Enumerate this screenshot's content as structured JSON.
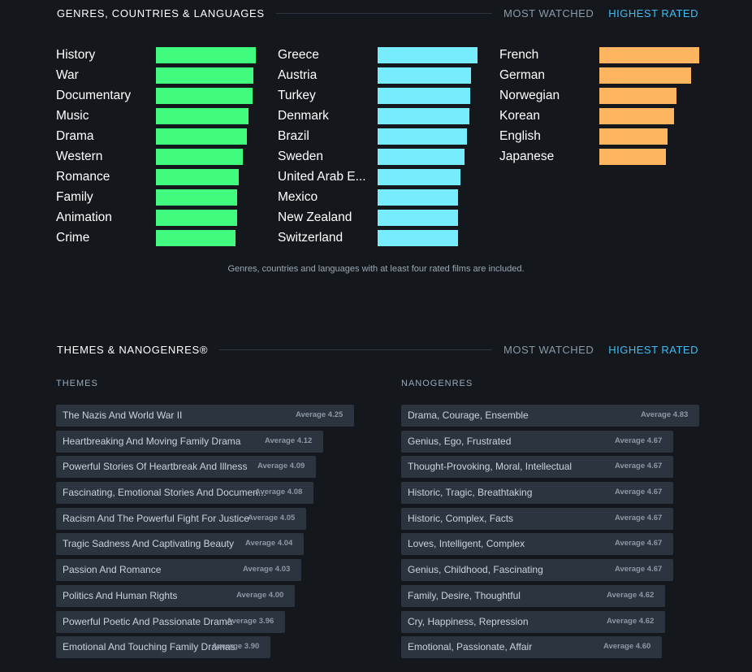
{
  "top_section": {
    "title": "GENRES, COUNTRIES & LANGUAGES",
    "tab_most_watched": "MOST WATCHED",
    "tab_highest_rated": "HIGHEST RATED",
    "note": "Genres, countries and languages with at least four rated films are included."
  },
  "genres": [
    {
      "label": "History",
      "value": 1.0
    },
    {
      "label": "War",
      "value": 0.975
    },
    {
      "label": "Documentary",
      "value": 0.97
    },
    {
      "label": "Music",
      "value": 0.93
    },
    {
      "label": "Drama",
      "value": 0.91
    },
    {
      "label": "Western",
      "value": 0.87
    },
    {
      "label": "Romance",
      "value": 0.83
    },
    {
      "label": "Family",
      "value": 0.815
    },
    {
      "label": "Animation",
      "value": 0.815
    },
    {
      "label": "Crime",
      "value": 0.8
    }
  ],
  "countries": [
    {
      "label": "Greece",
      "value": 1.0
    },
    {
      "label": "Austria",
      "value": 0.935
    },
    {
      "label": "Turkey",
      "value": 0.93
    },
    {
      "label": "Denmark",
      "value": 0.915
    },
    {
      "label": "Brazil",
      "value": 0.895
    },
    {
      "label": "Sweden",
      "value": 0.87
    },
    {
      "label": "United Arab E...",
      "value": 0.83
    },
    {
      "label": "Mexico",
      "value": 0.805
    },
    {
      "label": "New Zealand",
      "value": 0.805
    },
    {
      "label": "Switzerland",
      "value": 0.805
    }
  ],
  "languages": [
    {
      "label": "French",
      "value": 1.0
    },
    {
      "label": "German",
      "value": 0.915
    },
    {
      "label": "Norwegian",
      "value": 0.775
    },
    {
      "label": "Korean",
      "value": 0.75
    },
    {
      "label": "English",
      "value": 0.685
    },
    {
      "label": "Japanese",
      "value": 0.67
    }
  ],
  "themes_section": {
    "title": "THEMES & NANOGENRES®",
    "tab_most_watched": "MOST WATCHED",
    "tab_highest_rated": "HIGHEST RATED",
    "themes_heading": "THEMES",
    "nanogenres_heading": "NANOGENRES"
  },
  "themes": [
    {
      "name": "The Nazis And World War II",
      "average": "Average 4.25",
      "score": 4.25
    },
    {
      "name": "Heartbreaking And Moving Family Drama",
      "average": "Average 4.12",
      "score": 4.12
    },
    {
      "name": "Powerful Stories Of Heartbreak And Illness",
      "average": "Average 4.09",
      "score": 4.09
    },
    {
      "name": "Fascinating, Emotional Stories And Documen...",
      "average": "Average 4.08",
      "score": 4.08
    },
    {
      "name": "Racism And The Powerful Fight For Justice",
      "average": "Average 4.05",
      "score": 4.05
    },
    {
      "name": "Tragic Sadness And Captivating Beauty",
      "average": "Average 4.04",
      "score": 4.04
    },
    {
      "name": "Passion And Romance",
      "average": "Average 4.03",
      "score": 4.03
    },
    {
      "name": "Politics And Human Rights",
      "average": "Average 4.00",
      "score": 4.0
    },
    {
      "name": "Powerful Poetic And Passionate Drama",
      "average": "Average 3.96",
      "score": 3.96
    },
    {
      "name": "Emotional And Touching Family Dramas",
      "average": "Average 3.90",
      "score": 3.9
    }
  ],
  "nanogenres": [
    {
      "name": "Drama, Courage, Ensemble",
      "average": "Average 4.83",
      "score": 4.83
    },
    {
      "name": "Genius, Ego, Frustrated",
      "average": "Average 4.67",
      "score": 4.67
    },
    {
      "name": "Thought-Provoking, Moral, Intellectual",
      "average": "Average 4.67",
      "score": 4.67
    },
    {
      "name": "Historic, Tragic, Breathtaking",
      "average": "Average 4.67",
      "score": 4.67
    },
    {
      "name": "Historic, Complex, Facts",
      "average": "Average 4.67",
      "score": 4.67
    },
    {
      "name": "Loves, Intelligent, Complex",
      "average": "Average 4.67",
      "score": 4.67
    },
    {
      "name": "Genius, Childhood, Fascinating",
      "average": "Average 4.67",
      "score": 4.67
    },
    {
      "name": "Family, Desire, Thoughtful",
      "average": "Average 4.62",
      "score": 4.62
    },
    {
      "name": "Cry, Happiness, Repression",
      "average": "Average 4.62",
      "score": 4.62
    },
    {
      "name": "Emotional, Passionate, Affair",
      "average": "Average 4.60",
      "score": 4.6
    }
  ]
}
